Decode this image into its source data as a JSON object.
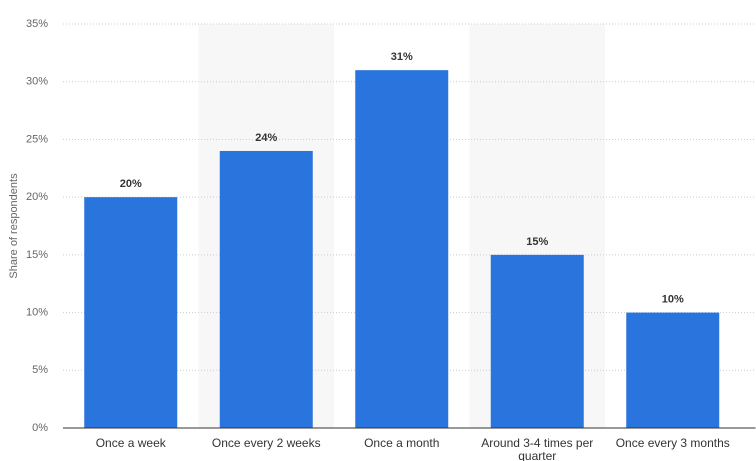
{
  "chart_data": {
    "type": "bar",
    "y_label": "Share of respondents",
    "categories": [
      "Once a week",
      "Once every 2 weeks",
      "Once a month",
      "Around 3-4 times per quarter",
      "Once every 3 months"
    ],
    "values": [
      20,
      24,
      31,
      15,
      10
    ],
    "value_labels": [
      "20%",
      "24%",
      "31%",
      "15%",
      "10%"
    ],
    "color": "#2a75dd",
    "ylim": [
      0,
      35
    ],
    "yticks": [
      {
        "value": 0,
        "label": "0%"
      },
      {
        "value": 5,
        "label": "5%"
      },
      {
        "value": 10,
        "label": "10%"
      },
      {
        "value": 15,
        "label": "15%"
      },
      {
        "value": 20,
        "label": "20%"
      },
      {
        "value": 25,
        "label": "25%"
      },
      {
        "value": 30,
        "label": "30%"
      },
      {
        "value": 35,
        "label": "35%"
      }
    ],
    "grid": true
  }
}
